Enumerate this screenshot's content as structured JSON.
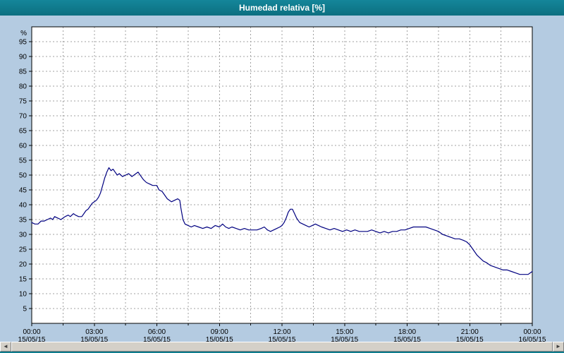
{
  "window": {
    "title": "Humedad relativa [%]"
  },
  "colors": {
    "titlebar": "#0E7C8C",
    "background": "#B4CBE1",
    "plot_background": "#FFFFFF",
    "grid": "#A0A0A0",
    "line": "#000080",
    "axis": "#000000"
  },
  "scrollbar": {
    "left_icon": "◄",
    "right_icon": "►"
  },
  "chart_data": {
    "type": "line",
    "title": "Humedad relativa [%]",
    "ylabel": "%",
    "xlabel": "",
    "ylim": [
      0,
      100
    ],
    "xlim_hours": [
      0,
      24
    ],
    "grid": true,
    "legend": "none",
    "line_color": "#000080",
    "y_ticks": [
      5,
      10,
      15,
      20,
      25,
      30,
      35,
      40,
      45,
      50,
      55,
      60,
      65,
      70,
      75,
      80,
      85,
      90,
      95
    ],
    "x_ticks": [
      {
        "hour": 0,
        "time": "00:00",
        "date": "15/05/15"
      },
      {
        "hour": 3,
        "time": "03:00",
        "date": "15/05/15"
      },
      {
        "hour": 6,
        "time": "06:00",
        "date": "15/05/15"
      },
      {
        "hour": 9,
        "time": "09:00",
        "date": "15/05/15"
      },
      {
        "hour": 12,
        "time": "12:00",
        "date": "15/05/15"
      },
      {
        "hour": 15,
        "time": "15:00",
        "date": "15/05/15"
      },
      {
        "hour": 18,
        "time": "18:00",
        "date": "15/05/15"
      },
      {
        "hour": 21,
        "time": "21:00",
        "date": "15/05/15"
      },
      {
        "hour": 24,
        "time": "00:00",
        "date": "16/05/15"
      }
    ],
    "series": [
      {
        "name": "Humedad relativa",
        "points": [
          [
            0.0,
            34
          ],
          [
            0.15,
            33.5
          ],
          [
            0.3,
            33.5
          ],
          [
            0.45,
            34.5
          ],
          [
            0.6,
            34.5
          ],
          [
            0.75,
            35
          ],
          [
            0.9,
            35.5
          ],
          [
            1.0,
            35
          ],
          [
            1.1,
            36
          ],
          [
            1.25,
            35.5
          ],
          [
            1.4,
            35
          ],
          [
            1.5,
            35.5
          ],
          [
            1.6,
            36
          ],
          [
            1.75,
            36.5
          ],
          [
            1.85,
            36
          ],
          [
            2.0,
            37
          ],
          [
            2.1,
            36.5
          ],
          [
            2.25,
            36
          ],
          [
            2.4,
            36
          ],
          [
            2.5,
            37
          ],
          [
            2.6,
            38
          ],
          [
            2.7,
            38.5
          ],
          [
            2.8,
            39.5
          ],
          [
            2.9,
            40.5
          ],
          [
            3.0,
            41
          ],
          [
            3.1,
            41.5
          ],
          [
            3.2,
            42.5
          ],
          [
            3.3,
            44
          ],
          [
            3.4,
            46.5
          ],
          [
            3.5,
            49
          ],
          [
            3.6,
            51
          ],
          [
            3.7,
            52.5
          ],
          [
            3.8,
            51.5
          ],
          [
            3.9,
            52
          ],
          [
            4.0,
            51
          ],
          [
            4.1,
            50
          ],
          [
            4.2,
            50.5
          ],
          [
            4.35,
            49.5
          ],
          [
            4.5,
            50
          ],
          [
            4.65,
            50.5
          ],
          [
            4.8,
            49.5
          ],
          [
            4.9,
            50
          ],
          [
            5.0,
            50.5
          ],
          [
            5.1,
            51
          ],
          [
            5.2,
            50
          ],
          [
            5.35,
            48.5
          ],
          [
            5.5,
            47.5
          ],
          [
            5.65,
            47
          ],
          [
            5.8,
            46.5
          ],
          [
            6.0,
            46.5
          ],
          [
            6.1,
            45
          ],
          [
            6.25,
            44.5
          ],
          [
            6.4,
            43
          ],
          [
            6.5,
            42
          ],
          [
            6.6,
            41.5
          ],
          [
            6.7,
            41
          ],
          [
            6.85,
            41.5
          ],
          [
            7.0,
            42
          ],
          [
            7.1,
            41.5
          ],
          [
            7.15,
            39
          ],
          [
            7.25,
            35
          ],
          [
            7.35,
            33.5
          ],
          [
            7.5,
            33
          ],
          [
            7.65,
            32.5
          ],
          [
            7.8,
            33
          ],
          [
            8.0,
            32.5
          ],
          [
            8.2,
            32
          ],
          [
            8.4,
            32.5
          ],
          [
            8.6,
            32
          ],
          [
            8.8,
            33
          ],
          [
            9.0,
            32.5
          ],
          [
            9.15,
            33.5
          ],
          [
            9.3,
            32.5
          ],
          [
            9.45,
            32
          ],
          [
            9.6,
            32.5
          ],
          [
            9.8,
            32
          ],
          [
            10.0,
            31.5
          ],
          [
            10.2,
            32
          ],
          [
            10.4,
            31.5
          ],
          [
            10.6,
            31.5
          ],
          [
            10.8,
            31.5
          ],
          [
            11.0,
            32
          ],
          [
            11.15,
            32.5
          ],
          [
            11.3,
            31.5
          ],
          [
            11.45,
            31
          ],
          [
            11.6,
            31.5
          ],
          [
            11.75,
            32
          ],
          [
            11.9,
            32.5
          ],
          [
            12.0,
            33
          ],
          [
            12.1,
            34
          ],
          [
            12.2,
            35.5
          ],
          [
            12.3,
            37.5
          ],
          [
            12.4,
            38.5
          ],
          [
            12.5,
            38.5
          ],
          [
            12.6,
            37
          ],
          [
            12.7,
            35.5
          ],
          [
            12.85,
            34
          ],
          [
            13.0,
            33.5
          ],
          [
            13.15,
            33
          ],
          [
            13.3,
            32.5
          ],
          [
            13.45,
            33
          ],
          [
            13.6,
            33.5
          ],
          [
            13.75,
            33
          ],
          [
            13.9,
            32.5
          ],
          [
            14.1,
            32
          ],
          [
            14.3,
            31.5
          ],
          [
            14.5,
            32
          ],
          [
            14.7,
            31.5
          ],
          [
            14.9,
            31
          ],
          [
            15.1,
            31.5
          ],
          [
            15.3,
            31
          ],
          [
            15.5,
            31.5
          ],
          [
            15.7,
            31
          ],
          [
            15.9,
            31
          ],
          [
            16.1,
            31
          ],
          [
            16.3,
            31.5
          ],
          [
            16.5,
            31
          ],
          [
            16.7,
            30.5
          ],
          [
            16.9,
            31
          ],
          [
            17.1,
            30.5
          ],
          [
            17.3,
            31
          ],
          [
            17.5,
            31
          ],
          [
            17.7,
            31.5
          ],
          [
            17.9,
            31.5
          ],
          [
            18.1,
            32
          ],
          [
            18.3,
            32.5
          ],
          [
            18.5,
            32.5
          ],
          [
            18.7,
            32.5
          ],
          [
            18.9,
            32.5
          ],
          [
            19.1,
            32
          ],
          [
            19.3,
            31.5
          ],
          [
            19.5,
            31
          ],
          [
            19.7,
            30
          ],
          [
            19.9,
            29.5
          ],
          [
            20.1,
            29
          ],
          [
            20.3,
            28.5
          ],
          [
            20.5,
            28.5
          ],
          [
            20.7,
            28
          ],
          [
            20.85,
            27.5
          ],
          [
            21.0,
            26.5
          ],
          [
            21.1,
            25.5
          ],
          [
            21.2,
            24.5
          ],
          [
            21.35,
            23
          ],
          [
            21.5,
            22
          ],
          [
            21.65,
            21
          ],
          [
            21.8,
            20.5
          ],
          [
            22.0,
            19.5
          ],
          [
            22.2,
            19
          ],
          [
            22.4,
            18.5
          ],
          [
            22.6,
            18
          ],
          [
            22.8,
            18
          ],
          [
            23.0,
            17.5
          ],
          [
            23.2,
            17
          ],
          [
            23.4,
            16.5
          ],
          [
            23.6,
            16.5
          ],
          [
            23.8,
            16.5
          ],
          [
            23.9,
            17
          ],
          [
            24.0,
            17.5
          ]
        ]
      }
    ]
  }
}
